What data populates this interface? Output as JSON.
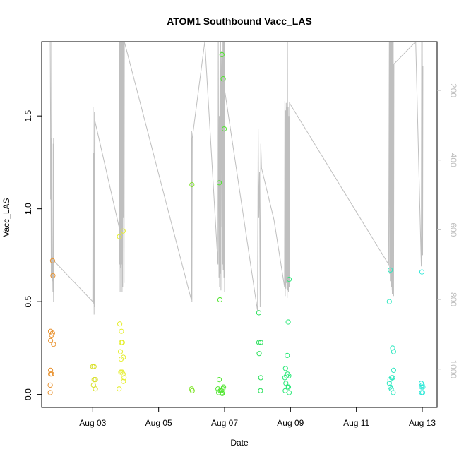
{
  "chart_data": {
    "type": "scatter",
    "title": "ATOM1 Southbound Vacc_LAS",
    "xlabel": "Date",
    "ylabel": "Vacc_LAS",
    "x_ticks": [
      "Aug 03",
      "Aug 05",
      "Aug 07",
      "Aug 09",
      "Aug 11",
      "Aug 13"
    ],
    "x_tick_days": [
      3,
      5,
      7,
      9,
      11,
      13
    ],
    "xlim": [
      1.45,
      13.45
    ],
    "y_ticks": [
      "0.0",
      "0.5",
      "1.0",
      "1.5"
    ],
    "y_tick_values": [
      0.0,
      0.5,
      1.0,
      1.5
    ],
    "ylim": [
      -0.07,
      1.9
    ],
    "secondary_axis": {
      "label": "",
      "ticks": [
        "200",
        "400",
        "600",
        "800",
        "1000"
      ],
      "tick_values": [
        200,
        400,
        600,
        800,
        1000
      ],
      "range_top_to_bottom": [
        60,
        1110
      ],
      "color": "#bfbfbf"
    },
    "points": [
      {
        "t": 1.72,
        "v": 0.34,
        "c": "#e8912e"
      },
      {
        "t": 1.75,
        "v": 0.32,
        "c": "#e8912e"
      },
      {
        "t": 1.72,
        "v": 0.13,
        "c": "#e8912e"
      },
      {
        "t": 1.72,
        "v": 0.11,
        "c": "#e8912e"
      },
      {
        "t": 1.75,
        "v": 0.11,
        "c": "#e8912e"
      },
      {
        "t": 1.71,
        "v": 0.05,
        "c": "#e8912e"
      },
      {
        "t": 1.71,
        "v": 0.01,
        "c": "#e8912e"
      },
      {
        "t": 1.78,
        "v": 0.33,
        "c": "#e8912e"
      },
      {
        "t": 1.72,
        "v": 0.29,
        "c": "#e8912e"
      },
      {
        "t": 1.81,
        "v": 0.27,
        "c": "#e8912e"
      },
      {
        "t": 1.78,
        "v": 0.72,
        "c": "#e8912e"
      },
      {
        "t": 1.79,
        "v": 0.64,
        "c": "#e8912e"
      },
      {
        "t": 3.0,
        "v": 0.15,
        "c": "#d8e02a"
      },
      {
        "t": 3.04,
        "v": 0.15,
        "c": "#d8e02a"
      },
      {
        "t": 3.04,
        "v": 0.08,
        "c": "#d8e02a"
      },
      {
        "t": 3.08,
        "v": 0.08,
        "c": "#d8e02a"
      },
      {
        "t": 3.02,
        "v": 0.05,
        "c": "#d8e02a"
      },
      {
        "t": 3.08,
        "v": 0.03,
        "c": "#d8e02a"
      },
      {
        "t": 3.82,
        "v": 0.38,
        "c": "#e5ee2d"
      },
      {
        "t": 3.87,
        "v": 0.34,
        "c": "#e5ee2d"
      },
      {
        "t": 3.87,
        "v": 0.28,
        "c": "#e5ee2d"
      },
      {
        "t": 3.9,
        "v": 0.28,
        "c": "#e5ee2d"
      },
      {
        "t": 3.84,
        "v": 0.23,
        "c": "#e5ee2d"
      },
      {
        "t": 3.93,
        "v": 0.2,
        "c": "#e5ee2d"
      },
      {
        "t": 3.86,
        "v": 0.19,
        "c": "#e5ee2d"
      },
      {
        "t": 3.85,
        "v": 0.12,
        "c": "#e5ee2d"
      },
      {
        "t": 3.89,
        "v": 0.12,
        "c": "#e5ee2d"
      },
      {
        "t": 3.92,
        "v": 0.11,
        "c": "#e5ee2d"
      },
      {
        "t": 3.95,
        "v": 0.09,
        "c": "#e5ee2d"
      },
      {
        "t": 3.93,
        "v": 0.07,
        "c": "#e5ee2d"
      },
      {
        "t": 3.8,
        "v": 0.03,
        "c": "#e5ee2d"
      },
      {
        "t": 3.81,
        "v": 0.85,
        "c": "#e5ee2d"
      },
      {
        "t": 3.92,
        "v": 0.88,
        "c": "#e5ee2d"
      },
      {
        "t": 6.0,
        "v": 0.03,
        "c": "#7fe52a"
      },
      {
        "t": 6.02,
        "v": 0.02,
        "c": "#7fe52a"
      },
      {
        "t": 6.01,
        "v": 1.13,
        "c": "#7fe52a"
      },
      {
        "t": 6.8,
        "v": 0.03,
        "c": "#4fe52e"
      },
      {
        "t": 6.84,
        "v": 0.08,
        "c": "#4fe52e"
      },
      {
        "t": 6.87,
        "v": 0.02,
        "c": "#4fe52e"
      },
      {
        "t": 6.9,
        "v": 0.02,
        "c": "#4fe52e"
      },
      {
        "t": 6.92,
        "v": 0.01,
        "c": "#4fe52e"
      },
      {
        "t": 6.95,
        "v": 0.03,
        "c": "#4fe52e"
      },
      {
        "t": 6.97,
        "v": 0.04,
        "c": "#4fe52e"
      },
      {
        "t": 6.82,
        "v": 0.01,
        "c": "#4fe52e"
      },
      {
        "t": 6.93,
        "v": 0.005,
        "c": "#4fe52e"
      },
      {
        "t": 6.84,
        "v": 1.14,
        "c": "#4fe52e"
      },
      {
        "t": 6.86,
        "v": 0.51,
        "c": "#4fe52e"
      },
      {
        "t": 6.92,
        "v": 1.83,
        "c": "#4fe52e"
      },
      {
        "t": 6.96,
        "v": 1.7,
        "c": "#4fe52e"
      },
      {
        "t": 6.99,
        "v": 1.43,
        "c": "#4fe52e"
      },
      {
        "t": 8.04,
        "v": 0.28,
        "c": "#28e05a"
      },
      {
        "t": 8.1,
        "v": 0.28,
        "c": "#28e05a"
      },
      {
        "t": 8.05,
        "v": 0.22,
        "c": "#28e05a"
      },
      {
        "t": 8.1,
        "v": 0.09,
        "c": "#28e05a"
      },
      {
        "t": 8.09,
        "v": 0.02,
        "c": "#28e05a"
      },
      {
        "t": 8.04,
        "v": 0.44,
        "c": "#28e05a"
      },
      {
        "t": 8.85,
        "v": 0.14,
        "c": "#2ae878"
      },
      {
        "t": 8.83,
        "v": 0.09,
        "c": "#2ae878"
      },
      {
        "t": 8.88,
        "v": 0.1,
        "c": "#2ae878"
      },
      {
        "t": 8.91,
        "v": 0.11,
        "c": "#2ae878"
      },
      {
        "t": 8.95,
        "v": 0.1,
        "c": "#2ae878"
      },
      {
        "t": 8.86,
        "v": 0.06,
        "c": "#2ae878"
      },
      {
        "t": 8.9,
        "v": 0.04,
        "c": "#2ae878"
      },
      {
        "t": 8.94,
        "v": 0.04,
        "c": "#2ae878"
      },
      {
        "t": 8.84,
        "v": 0.02,
        "c": "#2ae878"
      },
      {
        "t": 8.96,
        "v": 0.01,
        "c": "#2ae878"
      },
      {
        "t": 8.9,
        "v": 0.21,
        "c": "#2ae878"
      },
      {
        "t": 8.93,
        "v": 0.39,
        "c": "#2ae878"
      },
      {
        "t": 8.96,
        "v": 0.62,
        "c": "#2ae878"
      },
      {
        "t": 12.0,
        "v": 0.5,
        "c": "#2ee8c0"
      },
      {
        "t": 12.03,
        "v": 0.67,
        "c": "#2ee8c0"
      },
      {
        "t": 12.1,
        "v": 0.25,
        "c": "#2ee8c0"
      },
      {
        "t": 12.13,
        "v": 0.23,
        "c": "#2ee8c0"
      },
      {
        "t": 12.13,
        "v": 0.13,
        "c": "#2ee8c0"
      },
      {
        "t": 12.07,
        "v": 0.09,
        "c": "#2ee8c0"
      },
      {
        "t": 12.1,
        "v": 0.09,
        "c": "#2ee8c0"
      },
      {
        "t": 12.02,
        "v": 0.08,
        "c": "#2ee8c0"
      },
      {
        "t": 12.0,
        "v": 0.06,
        "c": "#2ee8c0"
      },
      {
        "t": 12.03,
        "v": 0.04,
        "c": "#2ee8c0"
      },
      {
        "t": 12.06,
        "v": 0.03,
        "c": "#2ee8c0"
      },
      {
        "t": 12.12,
        "v": 0.01,
        "c": "#2ee8c0"
      },
      {
        "t": 12.97,
        "v": 0.06,
        "c": "#2ee8d8"
      },
      {
        "t": 13.0,
        "v": 0.05,
        "c": "#2ee8d8"
      },
      {
        "t": 12.98,
        "v": 0.04,
        "c": "#2ee8d8"
      },
      {
        "t": 13.02,
        "v": 0.04,
        "c": "#2ee8d8"
      },
      {
        "t": 12.98,
        "v": 0.01,
        "c": "#2ee8d8"
      },
      {
        "t": 13.01,
        "v": 0.01,
        "c": "#2ee8d8"
      },
      {
        "t": 12.99,
        "v": 0.66,
        "c": "#2ee8d8"
      }
    ],
    "secondary_series": {
      "name": "secondary line (grey)",
      "color": "#bfbfbf",
      "t": [
        1.71,
        1.72,
        1.72,
        1.73,
        1.74,
        1.75,
        1.76,
        1.77,
        1.78,
        1.79,
        1.8,
        1.81,
        1.81,
        1.82,
        3.0,
        3.01,
        3.02,
        3.03,
        3.04,
        3.05,
        3.06,
        3.07,
        3.8,
        3.8,
        3.81,
        3.82,
        3.83,
        3.84,
        3.85,
        3.86,
        3.87,
        3.88,
        3.89,
        3.9,
        3.91,
        3.92,
        3.93,
        3.94,
        3.95,
        3.96,
        5.99,
        6.0,
        6.01,
        6.02,
        6.4,
        6.8,
        6.81,
        6.83,
        6.84,
        6.85,
        6.86,
        6.87,
        6.88,
        6.89,
        6.9,
        6.91,
        6.92,
        6.93,
        6.94,
        6.95,
        6.96,
        6.97,
        6.98,
        6.99,
        7.0,
        7.01,
        8.0,
        8.02,
        8.04,
        8.06,
        8.08,
        8.1,
        8.12,
        8.5,
        8.82,
        8.83,
        8.84,
        8.85,
        8.86,
        8.87,
        8.88,
        8.89,
        8.9,
        8.91,
        8.92,
        8.93,
        8.94,
        8.95,
        8.96,
        8.97,
        11.98,
        12.0,
        12.01,
        12.02,
        12.03,
        12.04,
        12.05,
        12.06,
        12.07,
        12.08,
        12.09,
        12.1,
        12.11,
        12.12,
        12.13,
        12.14,
        12.8,
        12.97,
        12.98,
        12.99,
        13.0,
        13.01,
        13.02
      ],
      "v": [
        1.9,
        1.45,
        1.05,
        1.38,
        0.63,
        1.9,
        1.04,
        0.61,
        0.74,
        0.55,
        1.35,
        0.5,
        1.38,
        0.72,
        0.5,
        1.55,
        0.49,
        1.3,
        0.43,
        1.52,
        0.47,
        1.47,
        0.9,
        1.9,
        0.7,
        1.9,
        0.55,
        1.9,
        0.68,
        1.9,
        0.7,
        1.9,
        0.55,
        1.9,
        0.58,
        1.9,
        0.95,
        1.9,
        0.6,
        1.9,
        0.51,
        1.42,
        0.5,
        1.38,
        1.9,
        0.7,
        1.9,
        0.63,
        1.5,
        0.58,
        1.9,
        0.65,
        1.9,
        0.56,
        1.7,
        1.85,
        0.9,
        1.82,
        0.7,
        1.9,
        0.67,
        1.9,
        0.63,
        1.9,
        0.55,
        1.63,
        0.45,
        1.43,
        0.95,
        1.2,
        0.47,
        1.35,
        1.22,
        0.94,
        0.58,
        1.58,
        0.53,
        1.53,
        0.57,
        1.57,
        0.6,
        1.55,
        0.52,
        1.9,
        0.56,
        1.55,
        0.55,
        1.5,
        0.58,
        1.57,
        0.7,
        1.9,
        0.65,
        1.9,
        0.61,
        1.9,
        0.56,
        1.9,
        0.58,
        1.9,
        0.54,
        1.9,
        0.56,
        1.9,
        0.53,
        1.78,
        1.9,
        0.69,
        1.9,
        0.7,
        1.9,
        0.75,
        1.77
      ]
    }
  }
}
